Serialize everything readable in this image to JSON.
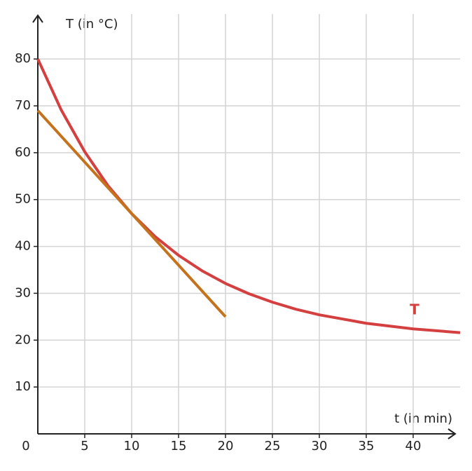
{
  "chart_data": {
    "type": "line",
    "x_label": "t (in min)",
    "y_label": "T (in °C)",
    "xlim": [
      0,
      45
    ],
    "ylim": [
      0,
      89
    ],
    "xticks": [
      0,
      5,
      10,
      15,
      20,
      25,
      30,
      35,
      40
    ],
    "yticks": [
      10,
      20,
      30,
      40,
      50,
      60,
      70,
      80
    ],
    "grid": true,
    "series": [
      {
        "name": "T",
        "color": "#d43f3f",
        "x": [
          0,
          2.5,
          5,
          7.5,
          10,
          12.5,
          15,
          17.5,
          20,
          22.5,
          25,
          27.5,
          30,
          32.5,
          35,
          37.5,
          40,
          42.5,
          45
        ],
        "values": [
          80,
          69.1,
          60.2,
          52.9,
          47.0,
          42.1,
          38.1,
          34.8,
          32.1,
          29.9,
          28.1,
          26.6,
          25.4,
          24.5,
          23.6,
          23.0,
          22.4,
          22.0,
          21.6
        ]
      },
      {
        "color": "#c4731c",
        "x": [
          0,
          20
        ],
        "values": [
          69,
          25
        ]
      }
    ]
  }
}
